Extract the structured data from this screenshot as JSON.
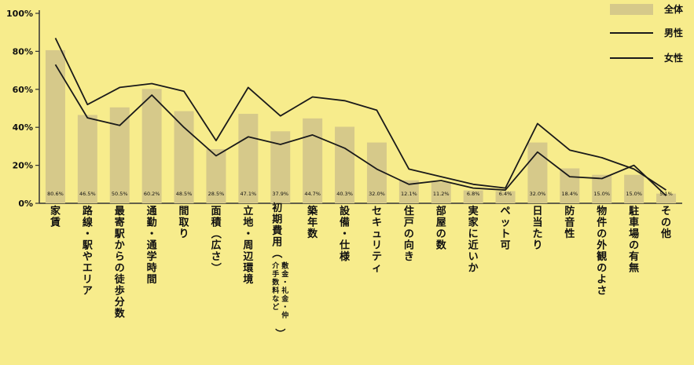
{
  "chart_data": {
    "type": "bar",
    "title": "",
    "xlabel": "",
    "ylabel": "",
    "ylim": [
      0,
      100
    ],
    "yticks": [
      "0%",
      "20%",
      "40%",
      "60%",
      "80%",
      "100%"
    ],
    "grid": false,
    "legend_position": "top-right",
    "categories": [
      "家賃",
      "路線・駅やエリア",
      "最寄駅からの徒歩分数",
      "通勤・通学時間",
      "間取り",
      "面積（広さ）",
      "立地・周辺環境",
      "初期費用（敷金・礼金・仲介手数料など）",
      "築年数",
      "設備・仕様",
      "セキュリティ",
      "住戸の向き",
      "部屋の数",
      "実家に近いか",
      "ペット可",
      "日当たり",
      "防音性",
      "物件の外観のよさ",
      "駐車場の有無",
      "その他"
    ],
    "series": [
      {
        "name": "全体",
        "kind": "bar",
        "color": "#d6c98a",
        "values": [
          80.6,
          46.5,
          50.5,
          60.2,
          48.5,
          28.5,
          47.1,
          37.9,
          44.7,
          40.3,
          32.0,
          12.1,
          11.2,
          6.8,
          6.4,
          32.0,
          18.4,
          15.0,
          15.0,
          5.1
        ],
        "value_labels": [
          "80.6%",
          "46.5%",
          "50.5%",
          "60.2%",
          "48.5%",
          "28.5%",
          "47.1%",
          "37.9%",
          "44.7%",
          "40.3%",
          "32.0%",
          "12.1%",
          "11.2%",
          "6.8%",
          "6.4%",
          "32.0%",
          "18.4%",
          "15.0%",
          "15.0%",
          "5.1%"
        ]
      },
      {
        "name": "男性",
        "kind": "line",
        "color": "#1a1a1a",
        "values": [
          87,
          52,
          61,
          63,
          59,
          33,
          61,
          46,
          56,
          54,
          49,
          18,
          14,
          10,
          8,
          42,
          28,
          24,
          18,
          7
        ]
      },
      {
        "name": "女性",
        "kind": "line",
        "color": "#1a1a1a",
        "values": [
          73,
          45,
          41,
          57,
          40,
          25,
          35,
          31,
          36,
          29,
          18,
          10,
          12,
          8,
          7,
          27,
          14,
          13,
          20,
          4
        ]
      }
    ]
  }
}
